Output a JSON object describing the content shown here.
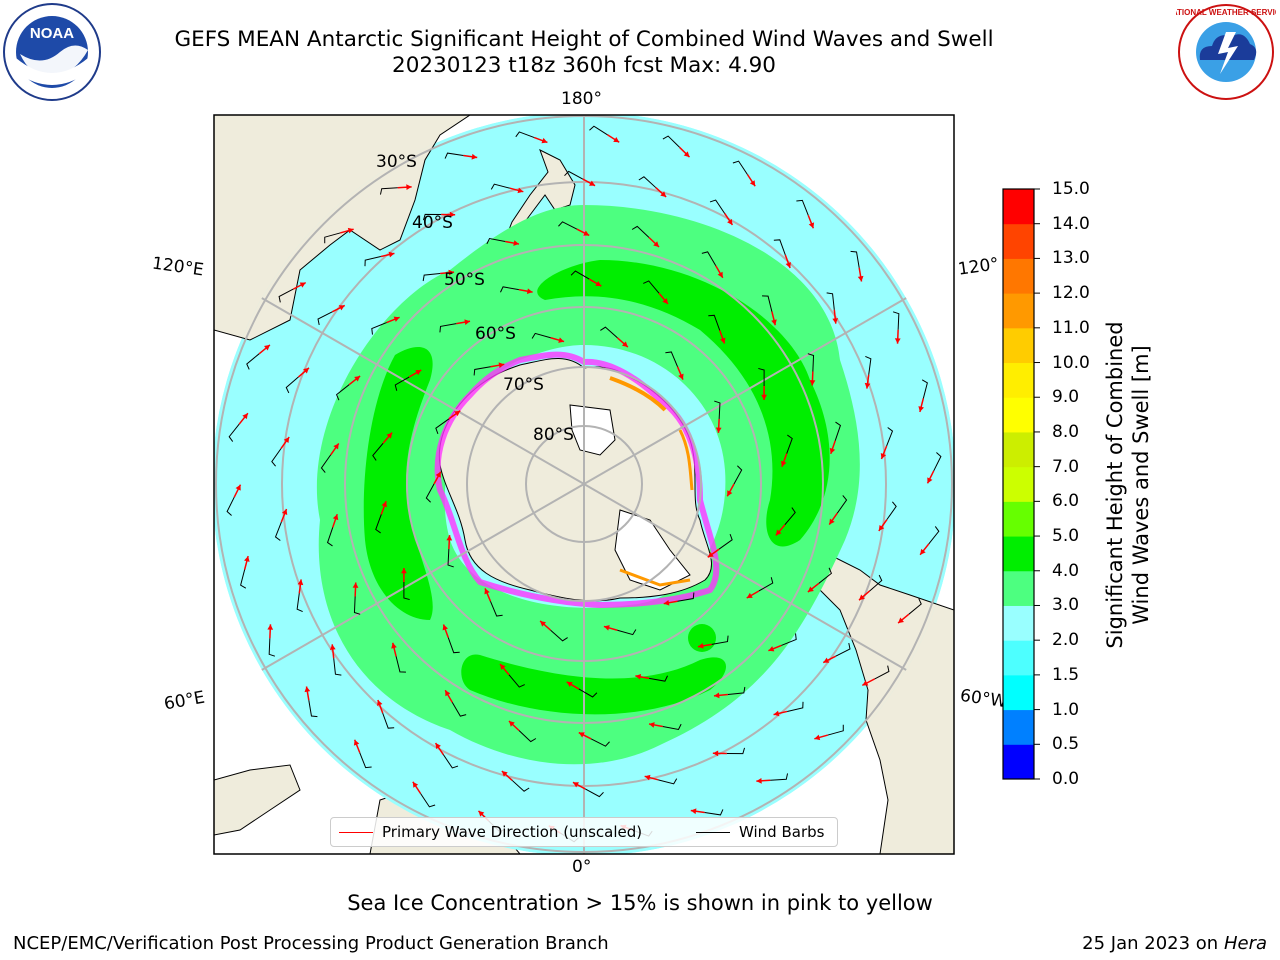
{
  "title": {
    "line1": "GEFS MEAN Antarctic Significant Height of Combined Wind Waves and Swell",
    "line2": "20230123 t18z 360h fcst   Max: 4.90"
  },
  "logos": {
    "left_icon": "noaa-logo",
    "left_text": "NOAA",
    "right_icon": "national-weather-service-logo",
    "right_text": "NATIONAL WEATHER SERVICE"
  },
  "map": {
    "projection": "south-polar-stereographic",
    "center_lat": -90,
    "outer_lat": -20,
    "longitude_labels": {
      "top": "180°",
      "bottom": "0°",
      "upper_left": "120°E",
      "lower_left": "60°E",
      "upper_right": "120°",
      "lower_right": "60°W"
    },
    "latitude_labels": [
      "30°S",
      "40°S",
      "50°S",
      "60°S",
      "70°S",
      "80°S"
    ],
    "colors": {
      "land": "#efecdc",
      "antarctica": "#efecdc",
      "ocean_band_low": "#99ffff",
      "ocean_band_mid": "#4dff80",
      "ocean_band_high": "#00ee00",
      "sea_ice": "#ff33ff",
      "arrow": "#ff0000",
      "barb": "#000000"
    }
  },
  "colorbar": {
    "ticks": [
      "0.0",
      "0.5",
      "1.0",
      "1.5",
      "2.0",
      "3.0",
      "4.0",
      "5.0",
      "6.0",
      "7.0",
      "8.0",
      "9.0",
      "10.0",
      "11.0",
      "12.0",
      "13.0",
      "14.0",
      "15.0"
    ],
    "colors": [
      "#0000ff",
      "#0080ff",
      "#00ffff",
      "#4dffff",
      "#99ffff",
      "#4dff80",
      "#00ee00",
      "#66ff00",
      "#ccff00",
      "#ccee00",
      "#ffff00",
      "#ffee00",
      "#ffcc00",
      "#ff9900",
      "#ff7700",
      "#ff4400",
      "#ff0000"
    ],
    "label": "Significant Height of Combined Wind Waves and Swell [m]",
    "label_line1": "Significant Height of Combined",
    "label_line2": "Wind Waves and Swell [m]"
  },
  "legend": {
    "primary_label": "Primary Wave Direction (unscaled)",
    "barb_label": "Wind Barbs"
  },
  "notes": {
    "ice": "Sea Ice Concentration > 15% is shown in pink to yellow"
  },
  "footer": {
    "left": "NCEP/EMC/Verification Post Processing Product Generation Branch",
    "date": "25 Jan 2023 on",
    "host": "Hera"
  }
}
